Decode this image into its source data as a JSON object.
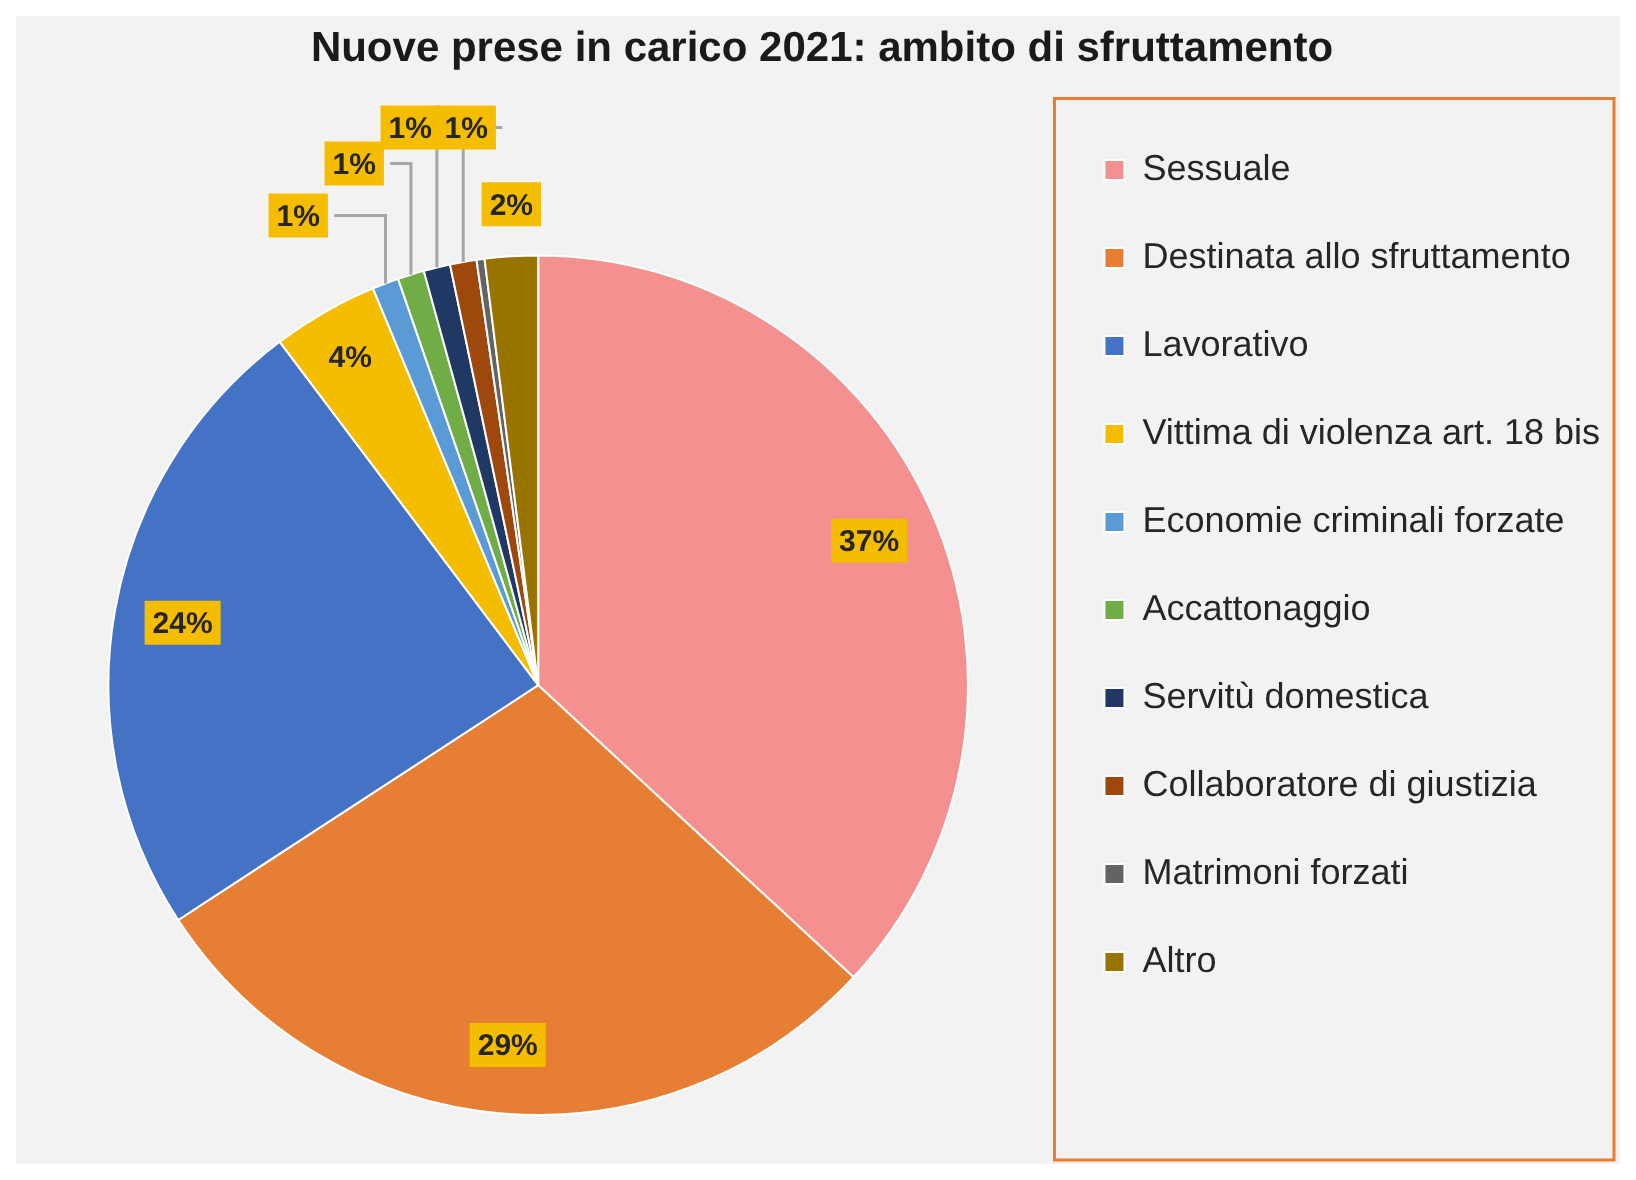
{
  "chart_data": {
    "type": "pie",
    "title": "Nuove prese in carico 2021: ambito di sfruttamento",
    "categories": [
      "Sessuale",
      "Destinata allo sfruttamento",
      "Lavorativo",
      "Vittima di violenza art. 18 bis",
      "Economie criminali forzate",
      "Accattonaggio",
      "Servitù domestica",
      "Collaboratore di giustizia",
      "Matrimoni forzati",
      "Altro"
    ],
    "values": [
      37,
      29,
      24,
      4,
      1,
      1,
      1,
      1,
      0.3,
      2
    ],
    "colors": [
      "#f4908f",
      "#e67e33",
      "#4472c4",
      "#f5bd00",
      "#5b9bd5",
      "#70ad47",
      "#203864",
      "#9e480e",
      "#636363",
      "#997300"
    ],
    "value_labels": [
      "37%",
      "29%",
      "24%",
      "4%",
      "1%",
      "1%",
      "1%",
      "1%",
      null,
      "2%"
    ],
    "legend": "right"
  }
}
